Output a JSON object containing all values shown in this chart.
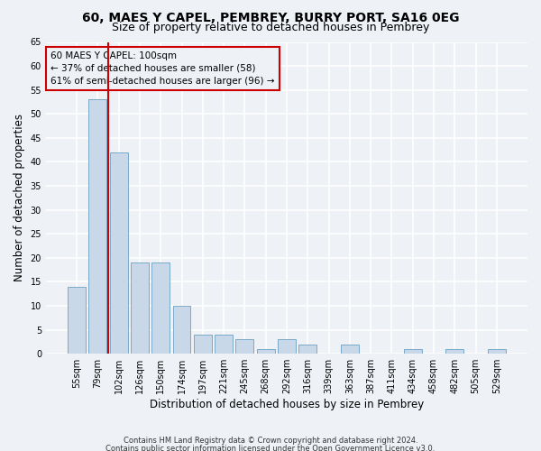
{
  "title1": "60, MAES Y CAPEL, PEMBREY, BURRY PORT, SA16 0EG",
  "title2": "Size of property relative to detached houses in Pembrey",
  "xlabel": "Distribution of detached houses by size in Pembrey",
  "ylabel": "Number of detached properties",
  "categories": [
    "55sqm",
    "79sqm",
    "102sqm",
    "126sqm",
    "150sqm",
    "174sqm",
    "197sqm",
    "221sqm",
    "245sqm",
    "268sqm",
    "292sqm",
    "316sqm",
    "339sqm",
    "363sqm",
    "387sqm",
    "411sqm",
    "434sqm",
    "458sqm",
    "482sqm",
    "505sqm",
    "529sqm"
  ],
  "values": [
    14,
    53,
    42,
    19,
    19,
    10,
    4,
    4,
    3,
    1,
    3,
    2,
    0,
    2,
    0,
    0,
    1,
    0,
    1,
    0,
    1
  ],
  "bar_color": "#c8d8e8",
  "bar_edge_color": "#7aaac8",
  "vline_x": 1.5,
  "vline_color": "#cc0000",
  "annotation_text": "60 MAES Y CAPEL: 100sqm\n← 37% of detached houses are smaller (58)\n61% of semi-detached houses are larger (96) →",
  "annotation_box_color": "#cc0000",
  "ylim": [
    0,
    65
  ],
  "yticks": [
    0,
    5,
    10,
    15,
    20,
    25,
    30,
    35,
    40,
    45,
    50,
    55,
    60,
    65
  ],
  "footer1": "Contains HM Land Registry data © Crown copyright and database right 2024.",
  "footer2": "Contains public sector information licensed under the Open Government Licence v3.0.",
  "bg_color": "#eef2f7",
  "grid_color": "#ffffff",
  "title1_fontsize": 10,
  "title2_fontsize": 9,
  "tick_fontsize": 7,
  "ylabel_fontsize": 8.5,
  "xlabel_fontsize": 8.5,
  "footer_fontsize": 6,
  "annotation_fontsize": 7.5
}
